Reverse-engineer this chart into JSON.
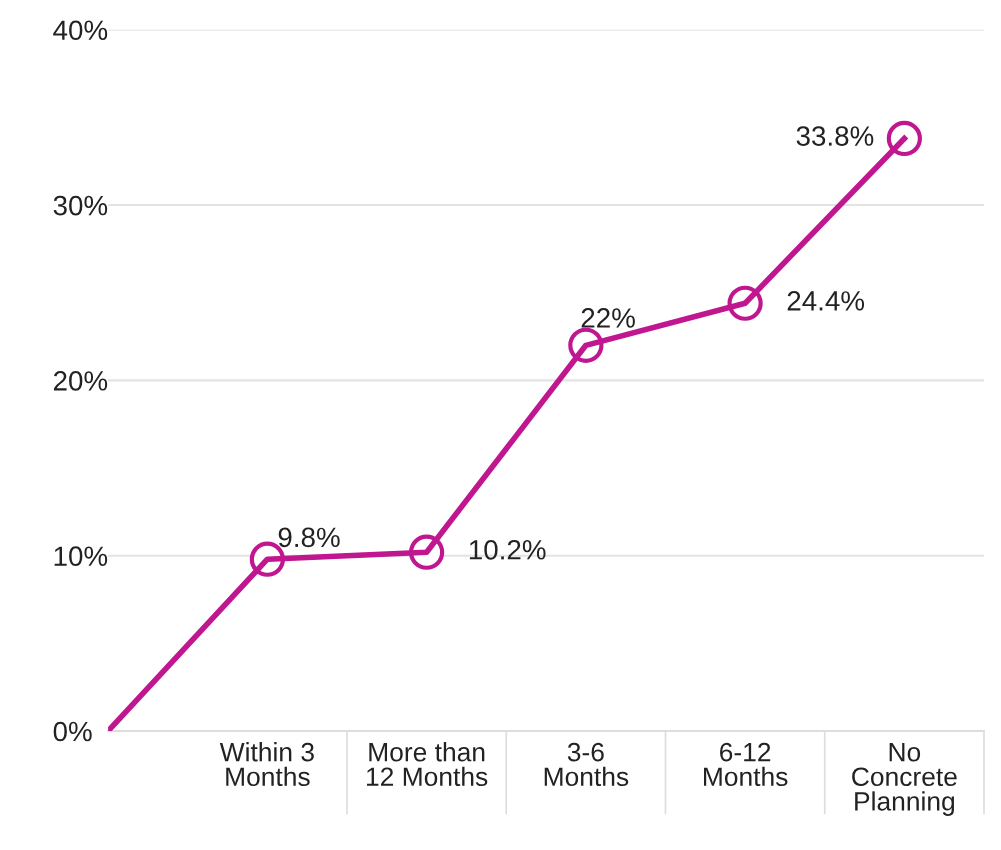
{
  "chart_data": {
    "type": "line",
    "categories": [
      null,
      "Within 3\nMonths",
      "More than\n12 Months",
      "3-6\nMonths",
      "6-12\nMonths",
      "No\nConcrete\nPlanning"
    ],
    "series": [
      {
        "color": "#c0168f",
        "values": [
          0,
          9.8,
          10.2,
          22,
          24.4,
          33.8
        ],
        "value_labels": [
          null,
          "9.8%",
          "10.2%",
          "22%",
          "24.4%",
          "33.8%"
        ]
      }
    ],
    "ylim": [
      0,
      40
    ],
    "yticks": [
      {
        "value": 0,
        "label": "0%"
      },
      {
        "value": 10,
        "label": "10%"
      },
      {
        "value": 20,
        "label": "20%"
      },
      {
        "value": 30,
        "label": "30%"
      },
      {
        "value": 40,
        "label": "40%"
      }
    ],
    "grid": "y",
    "marker": "circle",
    "line_style": "solid"
  }
}
